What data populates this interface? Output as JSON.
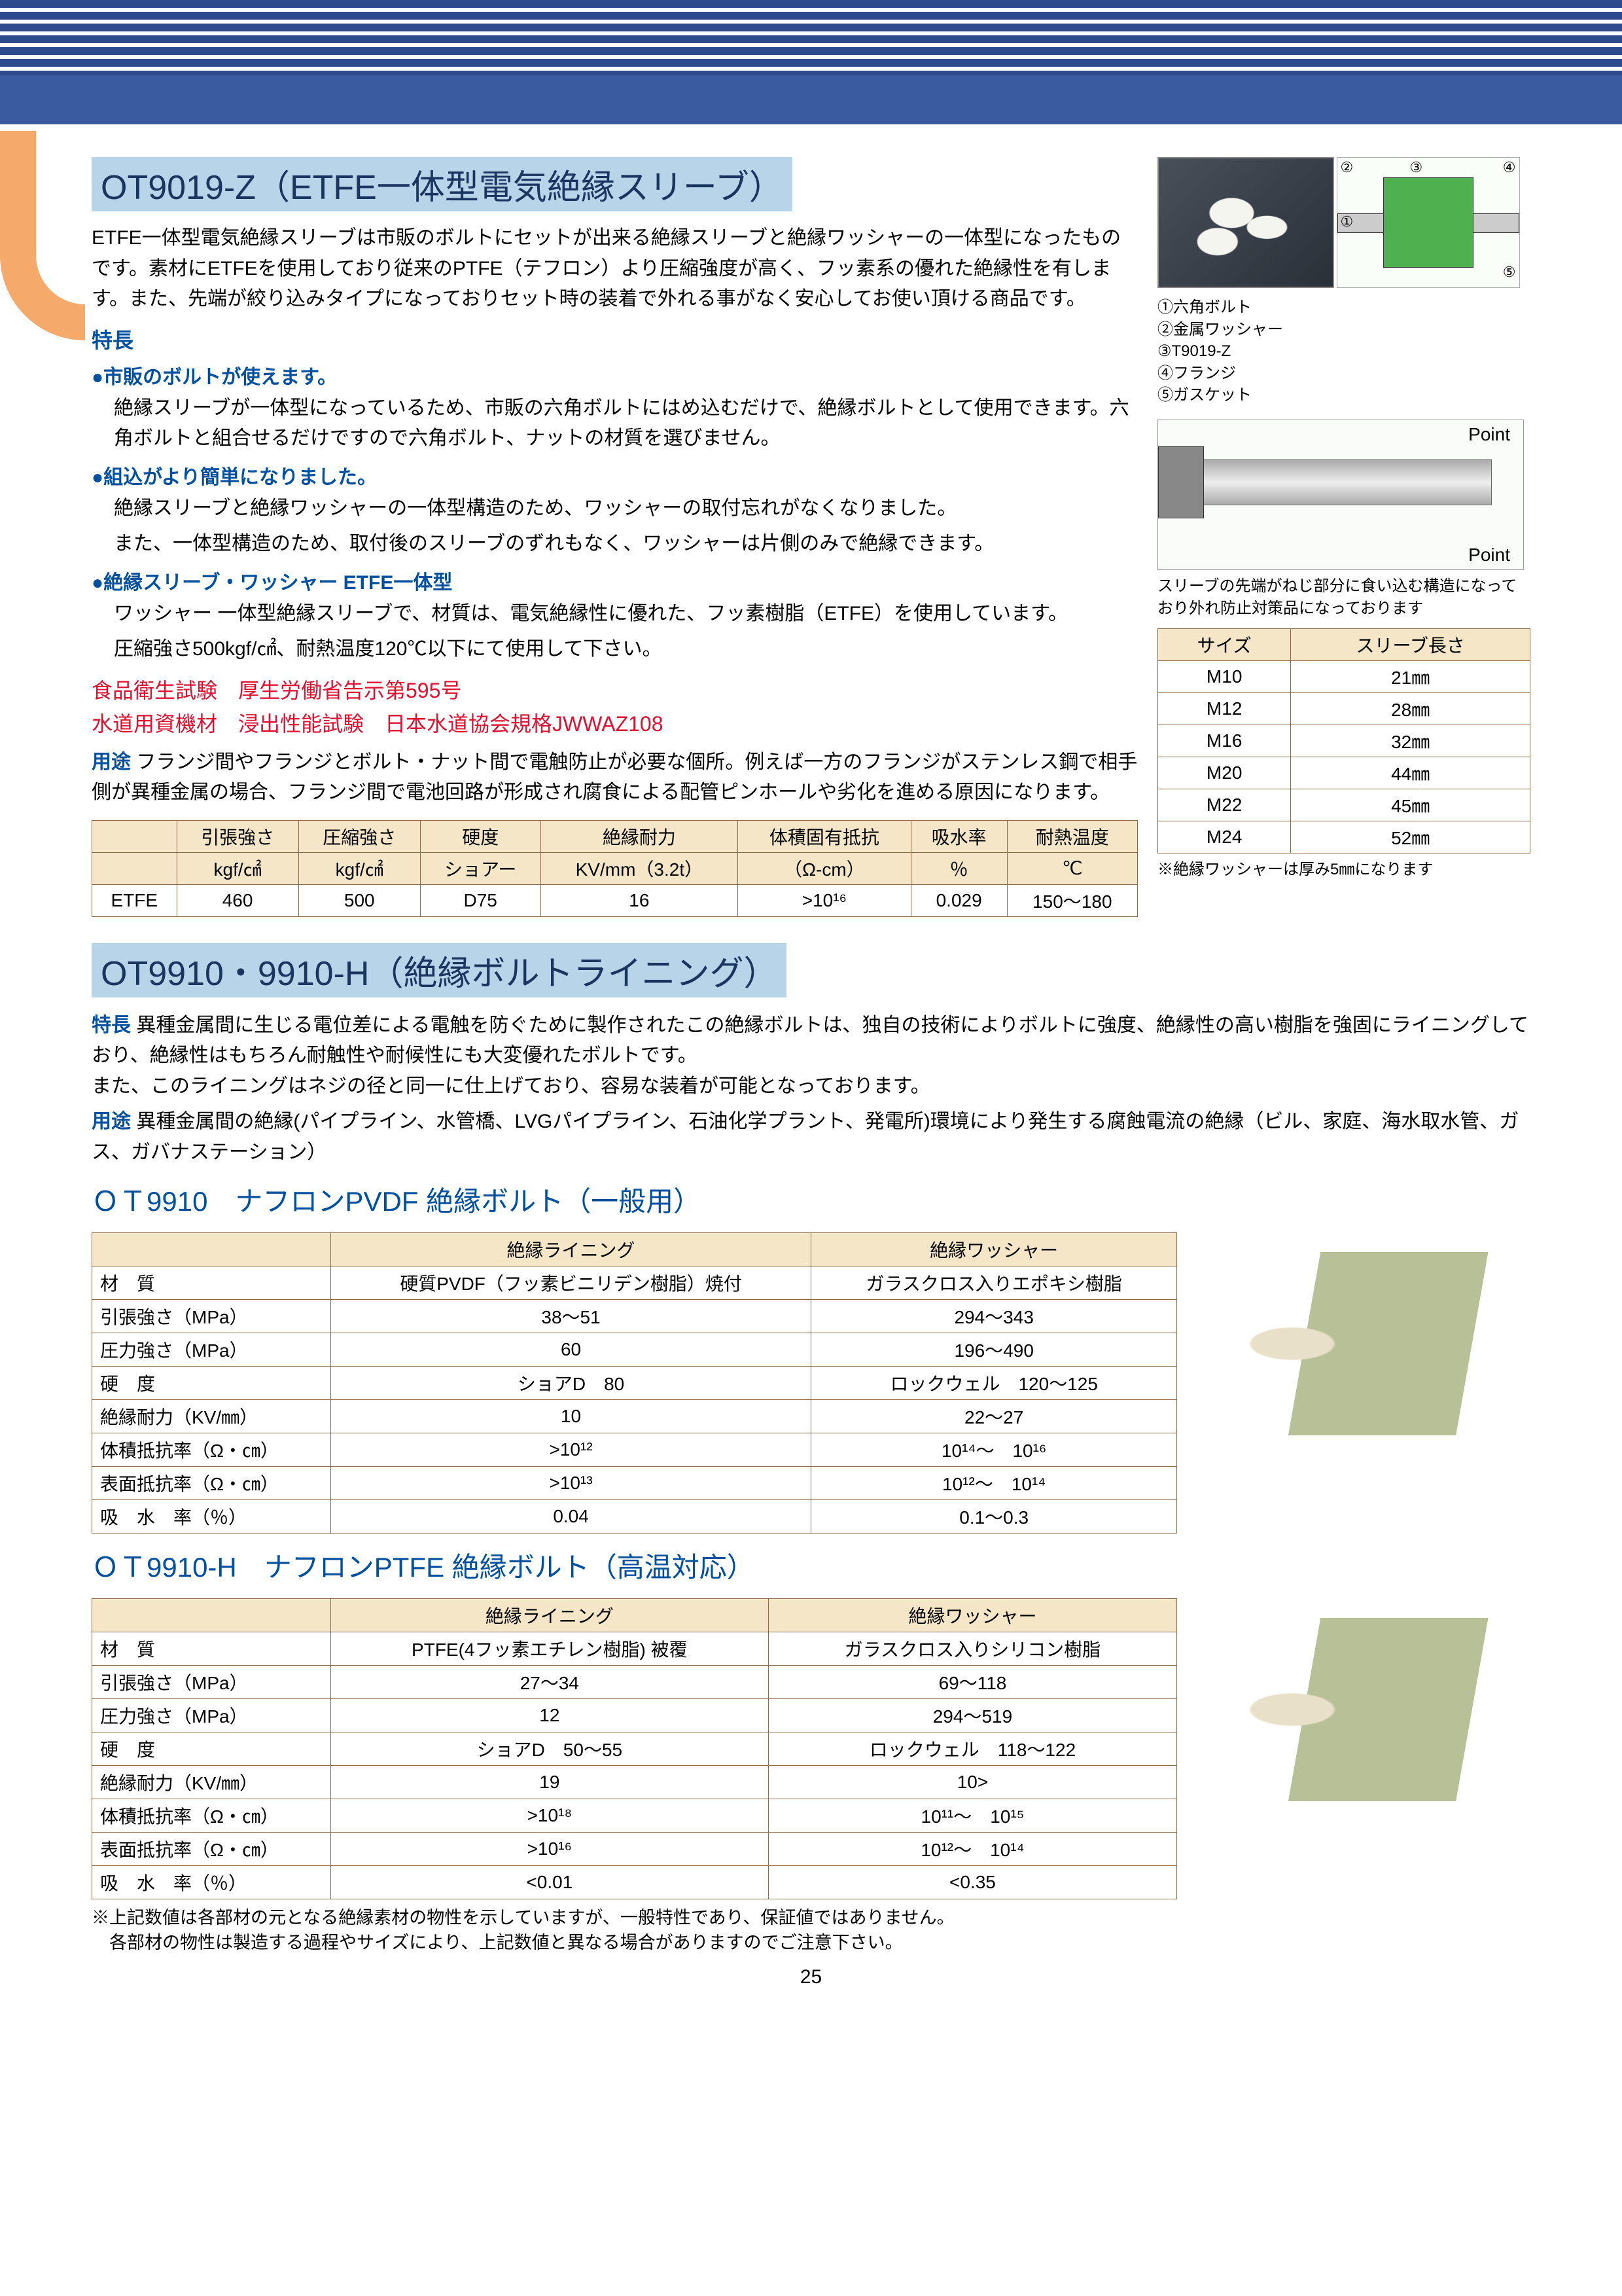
{
  "section1": {
    "title": "OT9019-Z（ETFE一体型電気絶縁スリーブ）",
    "intro": "ETFE一体型電気絶縁スリーブは市販のボルトにセットが出来る絶縁スリーブと絶縁ワッシャーの一体型になったものです。素材にETFEを使用しており従来のPTFE（テフロン）より圧縮強度が高く、フッ素系の優れた絶縁性を有します。また、先端が絞り込みタイプになっておりセット時の装着で外れる事がなく安心してお使い頂ける商品です。",
    "features_heading": "特長",
    "bullets": [
      {
        "title": "市販のボルトが使えます。",
        "lines": [
          "絶縁スリーブが一体型になっているため、市販の六角ボルトにはめ込むだけで、絶縁ボルトとして使用できます。六角ボルトと組合せるだけですので六角ボルト、ナットの材質を選びません。"
        ]
      },
      {
        "title": "組込がより簡単になりました。",
        "lines": [
          "絶縁スリーブと絶縁ワッシャーの一体型構造のため、ワッシャーの取付忘れがなくなりました。",
          "また、一体型構造のため、取付後のスリーブのずれもなく、ワッシャーは片側のみで絶縁できます。"
        ]
      },
      {
        "title": "絶縁スリーブ・ワッシャー ETFE一体型",
        "lines": [
          "ワッシャー 一体型絶縁スリーブで、材質は、電気絶縁性に優れた、フッ素樹脂（ETFE）を使用しています。",
          "圧縮強さ500kgf/㎠、耐熱温度120℃以下にて使用して下さい。"
        ]
      }
    ],
    "red1": "食品衛生試験　厚生労働省告示第595号",
    "red2": "水道用資機材　浸出性能試験　日本水道協会規格JWWAZ108",
    "usage_label": "用途",
    "usage": "フランジ間やフランジとボルト・ナット間で電触防止が必要な個所。例えば一方のフランジがステンレス鋼で相手側が異種金属の場合、フランジ間で電池回路が形成され腐食による配管ピンホールや劣化を進める原因になります。",
    "diagram_labels": {
      "l1": "①六角ボルト",
      "l2": "②金属ワッシャー",
      "l3": "③T9019-Z",
      "l4": "④フランジ",
      "l5": "⑤ガスケット",
      "n1": "①",
      "n2": "②",
      "n3": "③",
      "n4": "④",
      "n5": "⑤"
    },
    "point_label": "Point",
    "point_note": "スリーブの先端がねじ部分に食い込む構造になっており外れ防止対策品になっております",
    "spec_table": {
      "headers": [
        "",
        "引張強さ",
        "圧縮強さ",
        "硬度",
        "絶縁耐力",
        "体積固有抵抗",
        "吸水率",
        "耐熱温度"
      ],
      "units": [
        "",
        "kgf/㎠",
        "kgf/㎠",
        "ショアー",
        "KV/mm（3.2t）",
        "（Ω-cm）",
        "％",
        "℃"
      ],
      "row": [
        "ETFE",
        "460",
        "500",
        "D75",
        "16",
        ">10¹⁶",
        "0.029",
        "150～180"
      ]
    },
    "size_table": {
      "headers": [
        "サイズ",
        "スリーブ長さ"
      ],
      "rows": [
        [
          "M10",
          "21㎜"
        ],
        [
          "M12",
          "28㎜"
        ],
        [
          "M16",
          "32㎜"
        ],
        [
          "M20",
          "44㎜"
        ],
        [
          "M22",
          "45㎜"
        ],
        [
          "M24",
          "52㎜"
        ]
      ],
      "note": "※絶縁ワッシャーは厚み5㎜になります"
    }
  },
  "section2": {
    "title": "OT9910・9910-H（絶縁ボルトライニング）",
    "features_label": "特長",
    "features": "異種金属間に生じる電位差による電触を防ぐために製作されたこの絶縁ボルトは、独自の技術によりボルトに強度、絶縁性の高い樹脂を強固にライニングしており、絶縁性はもちろん耐触性や耐候性にも大変優れたボルトです。\nまた、このライニングはネジの径と同一に仕上げており、容易な装着が可能となっております。",
    "usage_label": "用途",
    "usage": "異種金属間の絶縁(パイプライン、水管橋、LVGパイプライン、石油化学プラント、発電所)環境により発生する腐蝕電流の絶縁（ビル、家庭、海水取水管、ガス、ガバナステーション）",
    "sub1_title": "ＯＴ9910　ナフロンPVDF 絶縁ボルト（一般用）",
    "sub2_title": "ＯＴ9910-H　ナフロンPTFE 絶縁ボルト（高温対応）",
    "col_headers": [
      "",
      "絶縁ライニング",
      "絶縁ワッシャー"
    ],
    "table1_rows": [
      [
        "材　質",
        "硬質PVDF（フッ素ビニリデン樹脂）焼付",
        "ガラスクロス入りエポキシ樹脂"
      ],
      [
        "引張強さ（MPa）",
        "38～51",
        "294～343"
      ],
      [
        "圧力強さ（MPa）",
        "60",
        "196～490"
      ],
      [
        "硬　度",
        "ショアD　80",
        "ロックウェル　120～125"
      ],
      [
        "絶縁耐力（KV/㎜）",
        "10",
        "22～27"
      ],
      [
        "体積抵抗率（Ω・㎝）",
        ">10¹²",
        "10¹⁴～　10¹⁶"
      ],
      [
        "表面抵抗率（Ω・㎝）",
        ">10¹³",
        "10¹²～　10¹⁴"
      ],
      [
        "吸　水　率（％）",
        "0.04",
        "0.1～0.3"
      ]
    ],
    "table2_rows": [
      [
        "材　質",
        "PTFE(4フッ素エチレン樹脂) 被覆",
        "ガラスクロス入りシリコン樹脂"
      ],
      [
        "引張強さ（MPa）",
        "27～34",
        "69～118"
      ],
      [
        "圧力強さ（MPa）",
        "12",
        "294～519"
      ],
      [
        "硬　度",
        "ショアD　50～55",
        "ロックウェル　118～122"
      ],
      [
        "絶縁耐力（KV/㎜）",
        "19",
        "10>"
      ],
      [
        "体積抵抗率（Ω・㎝）",
        ">10¹⁸",
        "10¹¹～　10¹⁵"
      ],
      [
        "表面抵抗率（Ω・㎝）",
        ">10¹⁶",
        "10¹²～　10¹⁴"
      ],
      [
        "吸　水　率（％）",
        "<0.01",
        "<0.35"
      ]
    ],
    "footnote": "※上記数値は各部材の元となる絶縁素材の物性を示していますが、一般特性であり、保証値ではありません。\n　各部材の物性は製造する過程やサイズにより、上記数値と異なる場合がありますのでご注意下さい。"
  },
  "page_number": "25"
}
